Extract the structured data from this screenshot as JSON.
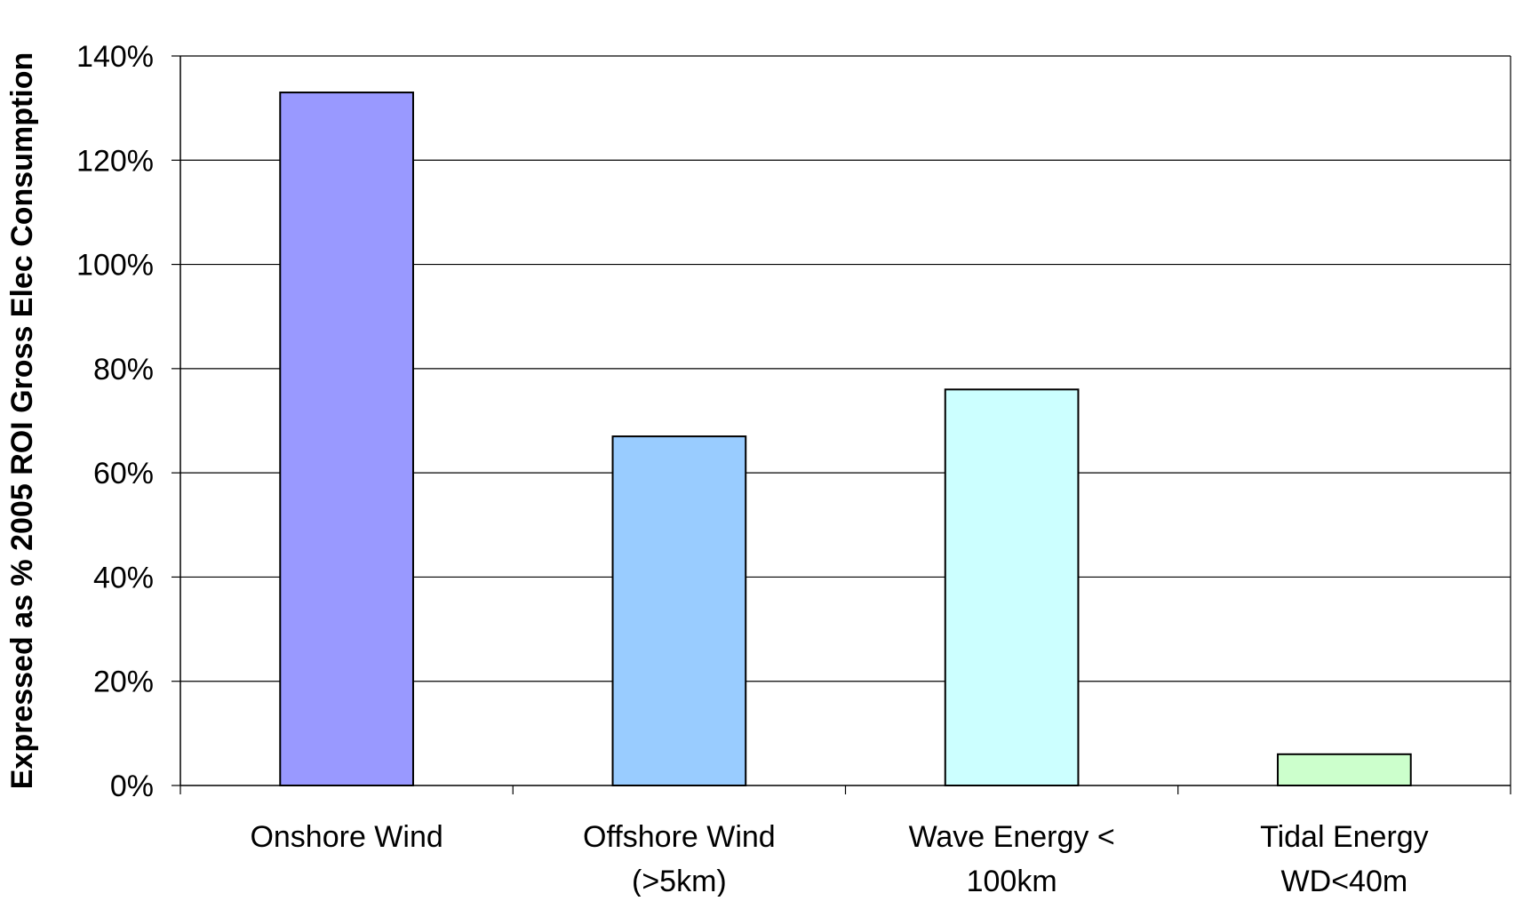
{
  "chart_data": {
    "type": "bar",
    "title": "",
    "xlabel": "",
    "ylabel": "Expressed as % 2005 ROI Gross Elec Consumption",
    "ylim": [
      0,
      140
    ],
    "y_ticks": [
      0,
      20,
      40,
      60,
      80,
      100,
      120,
      140
    ],
    "y_tick_labels": [
      "0%",
      "20%",
      "40%",
      "60%",
      "80%",
      "100%",
      "120%",
      "140%"
    ],
    "categories": [
      [
        "Onshore Wind"
      ],
      [
        "Offshore Wind",
        "(>5km)"
      ],
      [
        "Wave Energy <",
        "100km"
      ],
      [
        "Tidal Energy",
        "WD<40m"
      ]
    ],
    "values": [
      133,
      67,
      76,
      6
    ],
    "colors": [
      "#9999FF",
      "#99CCFF",
      "#CCFFFF",
      "#CCFFCC"
    ],
    "grid": true,
    "legend": "none"
  }
}
